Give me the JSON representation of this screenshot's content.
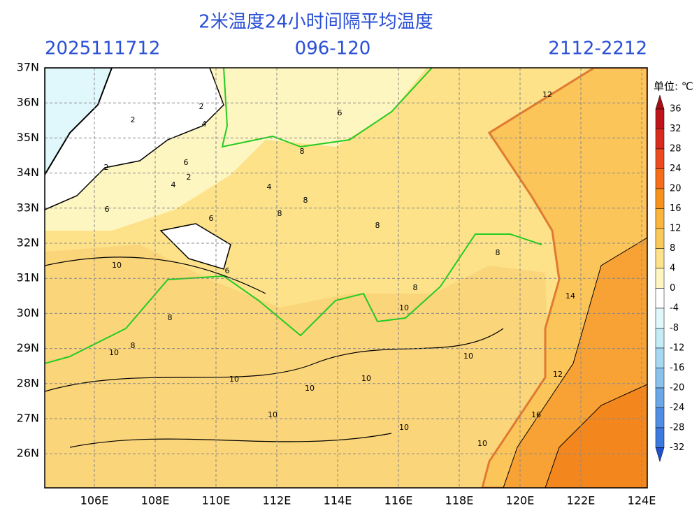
{
  "header": {
    "title": "2米温度24小时间隔平均温度",
    "init_time": "2025111712",
    "forecast_hours": "096-120",
    "valid_range": "2112-2212"
  },
  "map": {
    "lon_labels": [
      "106E",
      "108E",
      "110E",
      "112E",
      "114E",
      "116E",
      "118E",
      "120E",
      "122E",
      "124E"
    ],
    "lat_labels": [
      "37N",
      "36N",
      "35N",
      "34N",
      "33N",
      "32N",
      "31N",
      "30N",
      "29N",
      "28N",
      "27N",
      "26N"
    ],
    "contour_labels": [
      2,
      2,
      2,
      2,
      4,
      4,
      4,
      6,
      6,
      6,
      6,
      6,
      8,
      8,
      8,
      8,
      8,
      8,
      8,
      8,
      10,
      10,
      10,
      10,
      10,
      10,
      10,
      10,
      10,
      10,
      12,
      12,
      14,
      16
    ]
  },
  "colorbar": {
    "unit": "单位: ℃",
    "ticks": [
      36,
      32,
      28,
      24,
      20,
      16,
      12,
      8,
      4,
      0,
      -4,
      -8,
      -12,
      -16,
      -20,
      -24,
      -28,
      -32
    ],
    "colors": [
      "#a50f15",
      "#c0141c",
      "#d92a1e",
      "#ee4a1f",
      "#f66c18",
      "#f8921b",
      "#fbb43c",
      "#fbc95a",
      "#fde28a",
      "#fef6c0",
      "#ffffff",
      "#e0f7fb",
      "#c4ecf7",
      "#a6d8f3",
      "#8ac2ee",
      "#6aa6e8",
      "#4f8ee4",
      "#3b78df",
      "#2a63d6",
      "#1d4fcf"
    ]
  }
}
